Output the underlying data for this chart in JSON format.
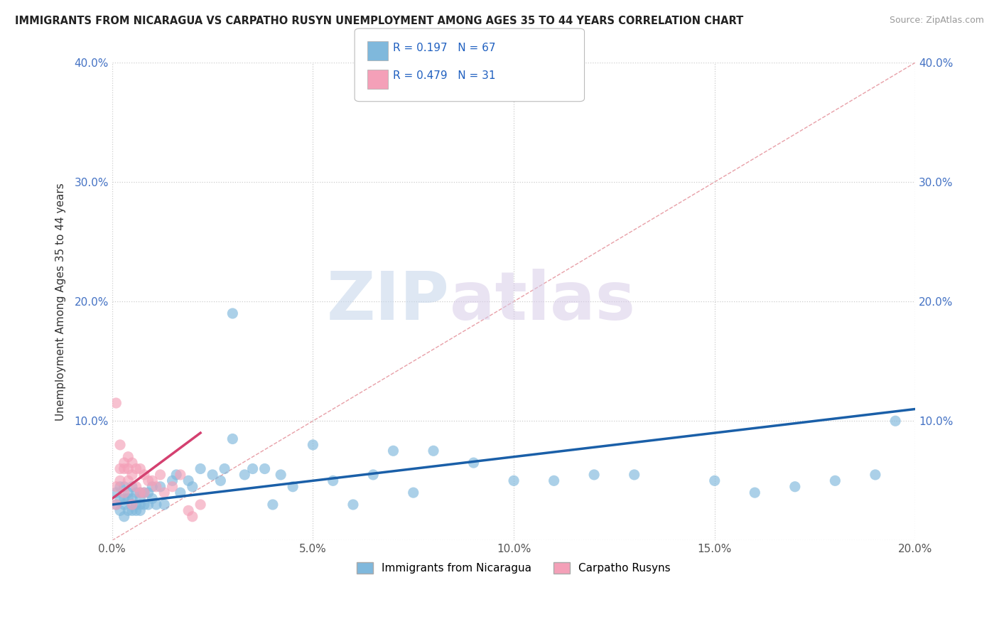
{
  "title": "IMMIGRANTS FROM NICARAGUA VS CARPATHO RUSYN UNEMPLOYMENT AMONG AGES 35 TO 44 YEARS CORRELATION CHART",
  "source": "Source: ZipAtlas.com",
  "xlabel": "",
  "ylabel": "Unemployment Among Ages 35 to 44 years",
  "xlim": [
    0.0,
    0.2
  ],
  "ylim": [
    0.0,
    0.4
  ],
  "xticks": [
    0.0,
    0.05,
    0.1,
    0.15,
    0.2
  ],
  "yticks": [
    0.0,
    0.1,
    0.2,
    0.3,
    0.4
  ],
  "xtick_labels": [
    "0.0%",
    "5.0%",
    "10.0%",
    "15.0%",
    "20.0%"
  ],
  "ytick_labels": [
    "",
    "10.0%",
    "20.0%",
    "30.0%",
    "40.0%"
  ],
  "legend1_label": "Immigrants from Nicaragua",
  "legend2_label": "Carpatho Rusyns",
  "R1": 0.197,
  "N1": 67,
  "R2": 0.479,
  "N2": 31,
  "color_blue": "#7fb8dc",
  "color_pink": "#f4a0b8",
  "color_blue_line": "#1a5fa8",
  "color_pink_line": "#d44070",
  "color_diag": "#e8b0b0",
  "watermark_zip": "ZIP",
  "watermark_atlas": "atlas",
  "blue_scatter_x": [
    0.001,
    0.001,
    0.002,
    0.002,
    0.002,
    0.003,
    0.003,
    0.003,
    0.003,
    0.004,
    0.004,
    0.004,
    0.005,
    0.005,
    0.005,
    0.005,
    0.006,
    0.006,
    0.006,
    0.007,
    0.007,
    0.007,
    0.007,
    0.008,
    0.008,
    0.009,
    0.009,
    0.01,
    0.01,
    0.011,
    0.012,
    0.013,
    0.015,
    0.016,
    0.017,
    0.019,
    0.02,
    0.022,
    0.025,
    0.027,
    0.028,
    0.03,
    0.033,
    0.035,
    0.038,
    0.04,
    0.042,
    0.045,
    0.05,
    0.055,
    0.06,
    0.065,
    0.07,
    0.075,
    0.08,
    0.09,
    0.1,
    0.11,
    0.12,
    0.13,
    0.15,
    0.16,
    0.17,
    0.18,
    0.19,
    0.195,
    0.03
  ],
  "blue_scatter_y": [
    0.03,
    0.04,
    0.025,
    0.035,
    0.045,
    0.02,
    0.03,
    0.035,
    0.045,
    0.025,
    0.035,
    0.04,
    0.025,
    0.03,
    0.035,
    0.045,
    0.025,
    0.03,
    0.04,
    0.025,
    0.03,
    0.035,
    0.04,
    0.03,
    0.04,
    0.03,
    0.04,
    0.035,
    0.045,
    0.03,
    0.045,
    0.03,
    0.05,
    0.055,
    0.04,
    0.05,
    0.045,
    0.06,
    0.055,
    0.05,
    0.06,
    0.085,
    0.055,
    0.06,
    0.06,
    0.03,
    0.055,
    0.045,
    0.08,
    0.05,
    0.03,
    0.055,
    0.075,
    0.04,
    0.075,
    0.065,
    0.05,
    0.05,
    0.055,
    0.055,
    0.05,
    0.04,
    0.045,
    0.05,
    0.055,
    0.1,
    0.19
  ],
  "pink_scatter_x": [
    0.001,
    0.001,
    0.001,
    0.002,
    0.002,
    0.002,
    0.003,
    0.003,
    0.003,
    0.004,
    0.004,
    0.004,
    0.005,
    0.005,
    0.005,
    0.006,
    0.006,
    0.007,
    0.007,
    0.008,
    0.008,
    0.009,
    0.01,
    0.011,
    0.012,
    0.013,
    0.015,
    0.017,
    0.019,
    0.02,
    0.022
  ],
  "pink_scatter_y": [
    0.115,
    0.03,
    0.045,
    0.08,
    0.05,
    0.06,
    0.06,
    0.04,
    0.065,
    0.05,
    0.06,
    0.07,
    0.03,
    0.055,
    0.065,
    0.045,
    0.06,
    0.04,
    0.06,
    0.055,
    0.04,
    0.05,
    0.05,
    0.045,
    0.055,
    0.04,
    0.045,
    0.055,
    0.025,
    0.02,
    0.03
  ],
  "blue_line_x": [
    0.0,
    0.2
  ],
  "blue_line_y": [
    0.03,
    0.11
  ],
  "pink_line_x": [
    0.0,
    0.022
  ],
  "pink_line_y": [
    0.035,
    0.09
  ],
  "diag_line_x": [
    0.0,
    0.2
  ],
  "diag_line_y": [
    0.0,
    0.4
  ]
}
